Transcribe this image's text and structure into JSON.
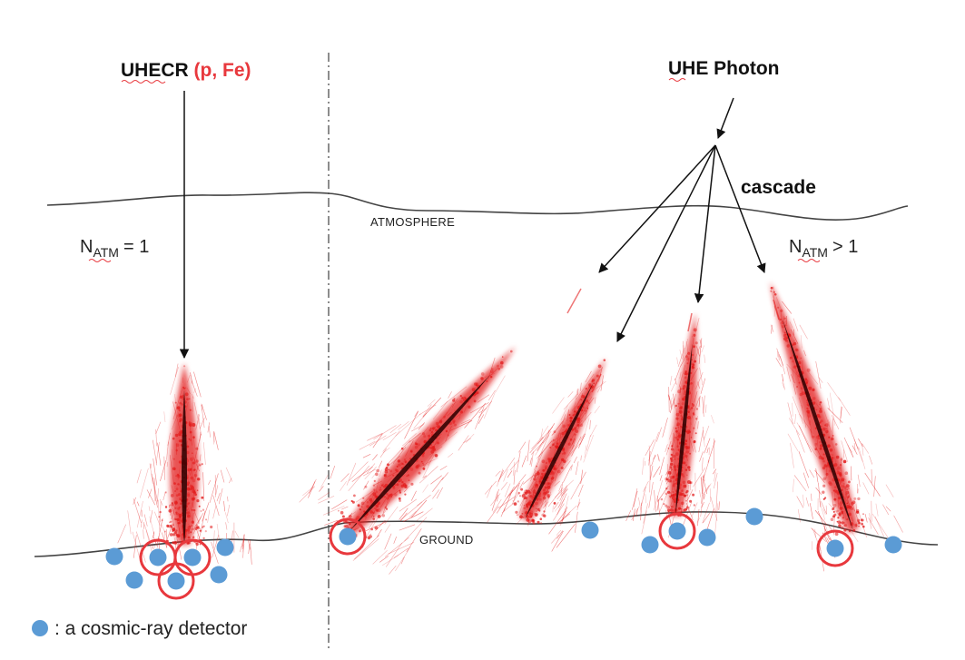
{
  "left_primary": {
    "label": "UHECR",
    "species": "(p, Fe)"
  },
  "right_primary": {
    "label": "UHE Photon",
    "cascade_label": "cascade"
  },
  "layers": {
    "atmosphere": "ATMOSPHERE",
    "ground": "GROUND"
  },
  "natm_left": {
    "n": "N",
    "sub": "ATM",
    "rel": "= 1"
  },
  "natm_right": {
    "n": "N",
    "sub": "ATM",
    "rel": "> 1"
  },
  "legend": {
    "text": ": a cosmic-ray detector"
  },
  "colors": {
    "shower": "#e21b1b",
    "shower_core": "#2a0000",
    "detector": "#5b9bd5",
    "highlight_ring": "#e8383d",
    "line": "#444444",
    "arrow": "#111111"
  }
}
